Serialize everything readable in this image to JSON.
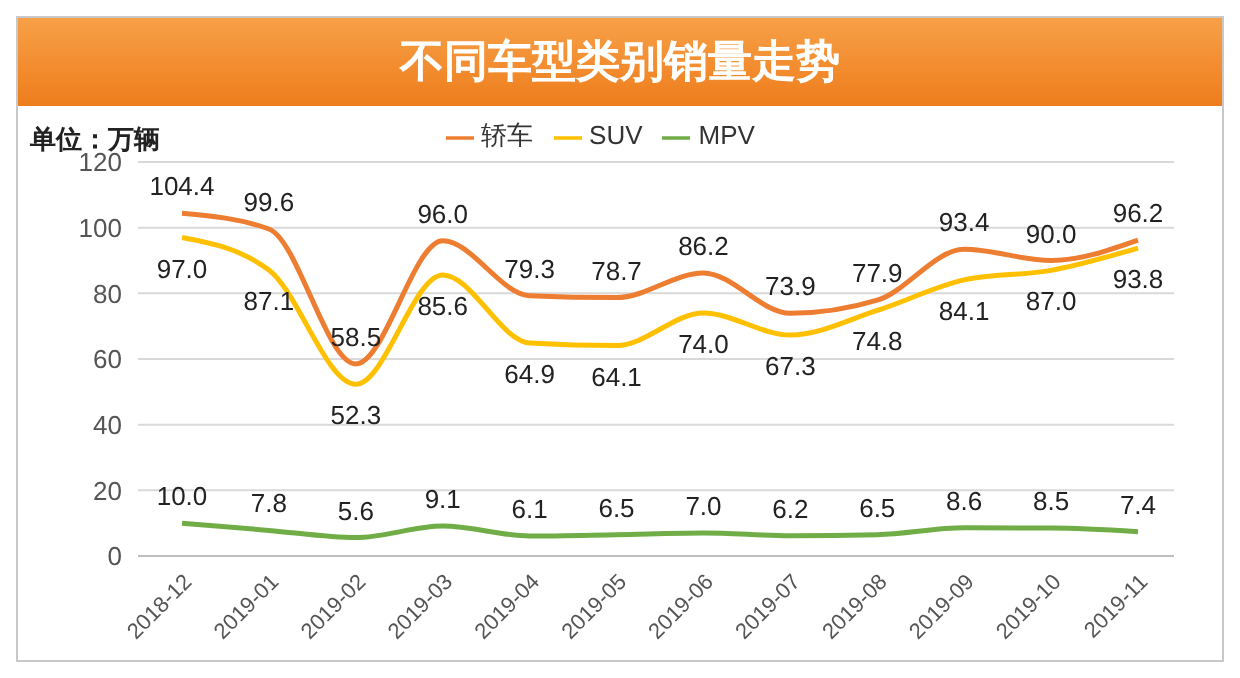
{
  "chart_data": {
    "type": "line",
    "title": "不同车型类别销量走势",
    "ylabel": "单位：万辆",
    "categories": [
      "2018-12",
      "2019-01",
      "2019-02",
      "2019-03",
      "2019-04",
      "2019-05",
      "2019-06",
      "2019-07",
      "2019-08",
      "2019-09",
      "2019-10",
      "2019-11"
    ],
    "series": [
      {
        "name": "轿车",
        "color": "#ed7d31",
        "values": [
          104.4,
          99.6,
          58.5,
          96.0,
          79.3,
          78.7,
          86.2,
          73.9,
          77.9,
          93.4,
          90.0,
          96.2
        ],
        "value_labels": [
          "104.4",
          "99.6",
          "58.5",
          "96.0",
          "79.3",
          "78.7",
          "86.2",
          "73.9",
          "77.9",
          "93.4",
          "90.0",
          "96.2"
        ]
      },
      {
        "name": "SUV",
        "color": "#ffc000",
        "values": [
          97.0,
          87.1,
          52.3,
          85.6,
          64.9,
          64.1,
          74.0,
          67.3,
          74.8,
          84.1,
          87.0,
          93.8
        ],
        "value_labels": [
          "97.0",
          "87.1",
          "52.3",
          "85.6",
          "64.9",
          "64.1",
          "74.0",
          "67.3",
          "74.8",
          "84.1",
          "87.0",
          "93.8"
        ]
      },
      {
        "name": "MPV",
        "color": "#70ad47",
        "values": [
          10.0,
          7.8,
          5.6,
          9.1,
          6.1,
          6.5,
          7.0,
          6.2,
          6.5,
          8.6,
          8.5,
          7.4
        ],
        "value_labels": [
          "10.0",
          "7.8",
          "5.6",
          "9.1",
          "6.1",
          "6.5",
          "7.0",
          "6.2",
          "6.5",
          "8.6",
          "8.5",
          "7.4"
        ]
      }
    ],
    "ylim": [
      0,
      120
    ],
    "yticks": [
      0,
      20,
      40,
      60,
      80,
      100,
      120
    ],
    "grid": "y",
    "legend": "top",
    "line_style": "solid"
  }
}
